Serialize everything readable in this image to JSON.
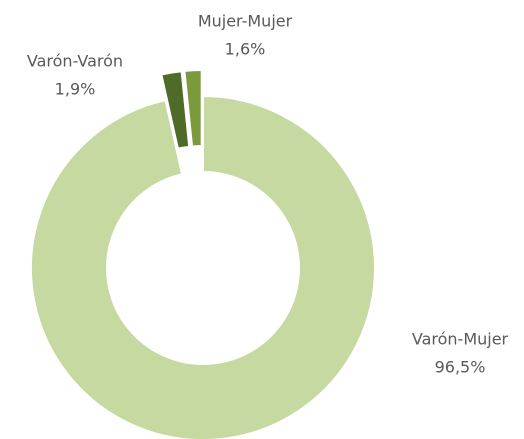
{
  "chart_data": {
    "type": "donut",
    "categories": [
      "Varón-Mujer",
      "Varón-Varón",
      "Mujer-Mujer"
    ],
    "values": [
      96.5,
      1.9,
      1.6
    ],
    "value_labels": [
      "96,5%",
      "1,9%",
      "1,6%"
    ],
    "colors": [
      "#c5d9a0",
      "#4f6b28",
      "#7a9a3c"
    ]
  }
}
